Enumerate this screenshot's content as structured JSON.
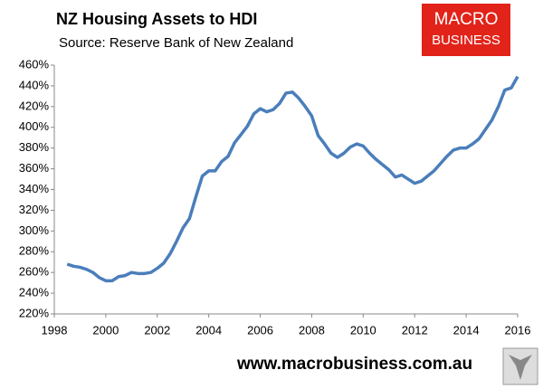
{
  "chart_data": {
    "type": "line",
    "title": "NZ Housing Assets to HDI",
    "subtitle": "Source: Reserve Bank of New Zealand",
    "logo": {
      "line1": "MACRO",
      "line2": "BUSINESS"
    },
    "website": "www.macrobusiness.com.au",
    "x": [
      1998.5,
      1998.75,
      1999,
      1999.25,
      1999.5,
      1999.75,
      2000,
      2000.25,
      2000.5,
      2000.75,
      2001,
      2001.25,
      2001.5,
      2001.75,
      2002,
      2002.25,
      2002.5,
      2002.75,
      2003,
      2003.25,
      2003.5,
      2003.75,
      2004,
      2004.25,
      2004.5,
      2004.75,
      2005,
      2005.25,
      2005.5,
      2005.75,
      2006,
      2006.25,
      2006.5,
      2006.75,
      2007,
      2007.25,
      2007.5,
      2007.75,
      2008,
      2008.25,
      2008.5,
      2008.75,
      2009,
      2009.25,
      2009.5,
      2009.75,
      2010,
      2010.25,
      2010.5,
      2010.75,
      2011,
      2011.25,
      2011.5,
      2011.75,
      2012,
      2012.25,
      2012.5,
      2012.75,
      2013,
      2013.25,
      2013.5,
      2013.75,
      2014,
      2014.25,
      2014.5,
      2014.75,
      2015,
      2015.25,
      2015.5,
      2015.75,
      2016
    ],
    "series": [
      {
        "color": "#4a7ebb",
        "values": [
          268,
          266,
          265,
          263,
          260,
          255,
          252,
          252,
          256,
          257,
          260,
          259,
          259,
          260,
          264,
          269,
          278,
          290,
          303,
          312,
          333,
          353,
          358,
          358,
          367,
          372,
          385,
          393,
          401,
          413,
          418,
          415,
          417,
          423,
          433,
          434,
          428,
          420,
          411,
          392,
          384,
          375,
          371,
          375,
          381,
          384,
          382,
          375,
          369,
          364,
          359,
          352,
          354,
          350,
          346,
          348,
          353,
          358,
          365,
          372,
          378,
          380,
          380,
          384,
          389,
          398,
          407,
          420,
          436,
          438,
          449
        ]
      }
    ],
    "xlim": [
      1998,
      2016
    ],
    "xticks": [
      1998,
      2000,
      2002,
      2004,
      2006,
      2008,
      2010,
      2012,
      2014,
      2016
    ],
    "ylim": [
      220,
      460
    ],
    "yticks": [
      {
        "value": 220,
        "label": "220%"
      },
      {
        "value": 240,
        "label": "240%"
      },
      {
        "value": 260,
        "label": "260%"
      },
      {
        "value": 280,
        "label": "280%"
      },
      {
        "value": 300,
        "label": "300%"
      },
      {
        "value": 320,
        "label": "320%"
      },
      {
        "value": 340,
        "label": "340%"
      },
      {
        "value": 360,
        "label": "360%"
      },
      {
        "value": 380,
        "label": "380%"
      },
      {
        "value": 400,
        "label": "400%"
      },
      {
        "value": 420,
        "label": "420%"
      },
      {
        "value": 440,
        "label": "440%"
      },
      {
        "value": 460,
        "label": "460%"
      }
    ]
  }
}
